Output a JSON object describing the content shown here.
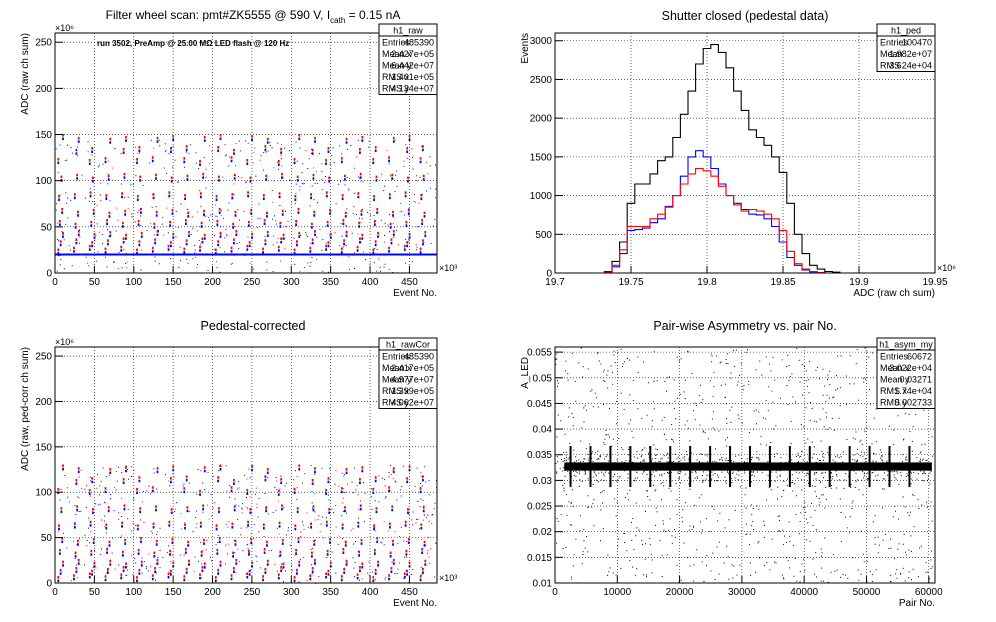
{
  "chart_data": [
    {
      "id": "raw",
      "type": "scatter",
      "title": "Filter wheel scan: pmt#ZK5555 @   590 V, I",
      "title_sub": "cath",
      "title_tail": " = 0.15 nA",
      "annotation": "run 3502, PreAmp @ 25.00 MΩ LED flash @  120 Hz",
      "xlabel": "Event No.",
      "ylabel": "ADC (raw ch sum)",
      "x_multiplier": "×10³",
      "y_multiplier": "×10⁶",
      "xlim": [
        0,
        485
      ],
      "ylim": [
        0,
        260
      ],
      "xticks": [
        "0",
        "50",
        "100",
        "150",
        "200",
        "250",
        "300",
        "350",
        "400",
        "450"
      ],
      "yticks": [
        "0",
        "50",
        "100",
        "150",
        "200",
        "250"
      ],
      "grid": true,
      "stats": {
        "name": "h1_raw",
        "rows": [
          [
            "Entries",
            "485390"
          ],
          [
            "Mean x",
            "2.427e+05"
          ],
          [
            "Mean y",
            "6.442e+07"
          ],
          [
            "RMS x",
            "1.401e+05"
          ],
          [
            "RMS y",
            "4.134e+07"
          ]
        ]
      },
      "baseline": 20,
      "levels": [
        22,
        30,
        38,
        50,
        62,
        80,
        100,
        118,
        130,
        142
      ],
      "colors": {
        "series_a": "#0000ff",
        "series_b": "#ff0000",
        "points": "#000000"
      }
    },
    {
      "id": "ped",
      "type": "line",
      "title": "Shutter closed (pedestal data)",
      "xlabel": "ADC (raw ch sum)",
      "ylabel": "Events",
      "x_multiplier": "×10⁶",
      "xlim": [
        19.7,
        19.95
      ],
      "ylim": [
        0,
        3100
      ],
      "xticks": [
        "19.7",
        "19.75",
        "19.8",
        "19.85",
        "19.9",
        "19.95"
      ],
      "yticks": [
        "0",
        "500",
        "1000",
        "1500",
        "2000",
        "2500",
        "3000"
      ],
      "grid": true,
      "stats": {
        "name": "h1_ped",
        "rows": [
          [
            "Entries",
            "100470"
          ],
          [
            "Mean",
            "1.982e+07"
          ],
          [
            "RMS",
            "3.624e+04"
          ]
        ]
      },
      "x": [
        19.735,
        19.74,
        19.745,
        19.75,
        19.755,
        19.76,
        19.765,
        19.77,
        19.775,
        19.78,
        19.785,
        19.79,
        19.795,
        19.8,
        19.805,
        19.81,
        19.815,
        19.82,
        19.825,
        19.83,
        19.835,
        19.84,
        19.845,
        19.85,
        19.855,
        19.86,
        19.865,
        19.87,
        19.875,
        19.88,
        19.885,
        19.89
      ],
      "series": [
        {
          "name": "",
          "color": "#000000",
          "values": [
            20,
            150,
            400,
            900,
            1150,
            1150,
            1280,
            1450,
            1500,
            1750,
            2050,
            2350,
            2700,
            2900,
            2950,
            2850,
            2650,
            2350,
            2100,
            1850,
            1750,
            1650,
            1500,
            1300,
            900,
            500,
            250,
            100,
            50,
            20,
            10,
            0
          ]
        },
        {
          "name": "",
          "color": "#0000ff",
          "values": [
            10,
            80,
            250,
            550,
            560,
            580,
            650,
            700,
            860,
            1000,
            1250,
            1500,
            1580,
            1500,
            1350,
            1150,
            1000,
            900,
            820,
            760,
            750,
            700,
            600,
            400,
            200,
            100,
            40,
            15,
            5,
            0,
            0,
            0
          ]
        },
        {
          "name": "",
          "color": "#ff0000",
          "values": [
            10,
            100,
            300,
            600,
            600,
            600,
            700,
            760,
            850,
            1000,
            1150,
            1280,
            1350,
            1320,
            1250,
            1120,
            1000,
            880,
            800,
            820,
            800,
            760,
            700,
            550,
            280,
            120,
            50,
            20,
            5,
            0,
            0,
            0
          ]
        }
      ]
    },
    {
      "id": "rawcor",
      "type": "scatter",
      "title": "Pedestal-corrected",
      "xlabel": "Event No.",
      "ylabel": "ADC (raw, ped-corr ch sum)",
      "x_multiplier": "×10³",
      "y_multiplier": "×10⁶",
      "xlim": [
        0,
        485
      ],
      "ylim": [
        0,
        260
      ],
      "xticks": [
        "0",
        "50",
        "100",
        "150",
        "200",
        "250",
        "300",
        "350",
        "400",
        "450"
      ],
      "yticks": [
        "0",
        "50",
        "100",
        "150",
        "200",
        "250"
      ],
      "grid": true,
      "stats": {
        "name": "h1_rawCor",
        "rows": [
          [
            "Entries",
            "485390"
          ],
          [
            "Mean x",
            "2.417e+05"
          ],
          [
            "Mean y",
            "4.977e+07"
          ],
          [
            "RMS x",
            "1.399e+05"
          ],
          [
            "RMS y",
            "4.062e+07"
          ]
        ]
      },
      "levels": [
        3,
        10,
        18,
        30,
        42,
        60,
        78,
        98,
        110,
        122
      ],
      "colors": {
        "series_a": "#0000ff",
        "series_b": "#ff0000",
        "points": "#000000"
      }
    },
    {
      "id": "asym",
      "type": "scatter",
      "title": "Pair-wise Asymmetry vs. pair No.",
      "xlabel": "Pair No.",
      "ylabel": "A_LED",
      "xlim": [
        0,
        61000
      ],
      "ylim": [
        0.01,
        0.056
      ],
      "xticks": [
        "0",
        "10000",
        "20000",
        "30000",
        "40000",
        "50000",
        "60000"
      ],
      "yticks": [
        "0.01",
        "0.015",
        "0.02",
        "0.025",
        "0.03",
        "0.035",
        "0.04",
        "0.045",
        "0.05",
        "0.055"
      ],
      "grid": true,
      "stats": {
        "name": "h1_asym_my",
        "rows": [
          [
            "Entries",
            "60672"
          ],
          [
            "Mean x",
            "3.022e+04"
          ],
          [
            "Mean y",
            "0.03271"
          ],
          [
            "RMS x",
            "1.74e+04"
          ],
          [
            "RMS y",
            "0.002733"
          ]
        ]
      },
      "band_center": 0.0327,
      "band_halfwidth": 0.0008,
      "spike_period": 3200
    }
  ]
}
